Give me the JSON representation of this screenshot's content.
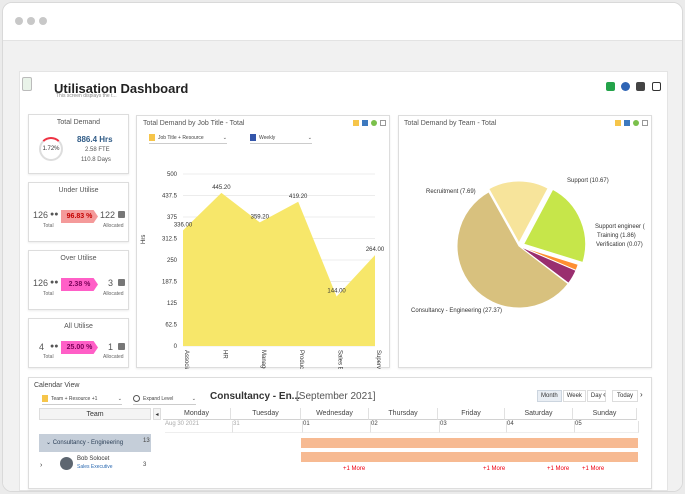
{
  "window": {
    "dots": 3
  },
  "app": {
    "title": "Utilisation Dashboard",
    "subtitle": "This screen displays the t...",
    "colors": {
      "accent": "#f7e76a",
      "pink": "#ff5fc7",
      "salmon": "#f08a8a",
      "green": "#c6e64a",
      "brown": "#d8c17e",
      "blue": "#7c9ccf"
    }
  },
  "kpis": {
    "total": {
      "title": "Total Demand",
      "ring": "1.72%",
      "hours": "886.4 Hrs",
      "fte": "2.58 FTE",
      "days": "110.8 Days"
    },
    "under": {
      "title": "Under Utilise",
      "left": "126",
      "left_label": "Total",
      "value": "96.83 %",
      "right": "122",
      "right_label": "Allocated"
    },
    "over": {
      "title": "Over Utilise",
      "left": "126",
      "left_label": "Total",
      "value": "2.38 %",
      "right": "3",
      "right_label": "Allocated"
    },
    "all": {
      "title": "All Utilise",
      "left": "4",
      "left_label": "Total",
      "value": "25.00 %",
      "right": "1",
      "right_label": "Allocated"
    }
  },
  "area_chart": {
    "title": "Total Demand by Job Title - Total",
    "dropdown_left": "Job Title + Resource",
    "dropdown_right": "Weekly"
  },
  "pie_chart": {
    "title": "Total Demand by Team - Total"
  },
  "calendar": {
    "title": "Calendar View",
    "team_filter": "Team + Resource +1",
    "expand": "Expand Level",
    "period_name": "Consultancy - En...",
    "period_month": "[September 2021]",
    "views": [
      "Month",
      "Week",
      "Day"
    ],
    "today": "Today",
    "days": [
      "Monday",
      "Tuesday",
      "Wednesday",
      "Thursday",
      "Friday",
      "Saturday",
      "Sunday"
    ],
    "dates": [
      "Aug 30 2021",
      "31",
      "01",
      "02",
      "03",
      "04",
      "05"
    ],
    "team_header": "Team",
    "group_name": "Consultancy - Engineering",
    "group_count": "13",
    "person_name": "Bob Solocet",
    "person_role": "Sales Executive",
    "person_count": "3",
    "more": "+1 More"
  },
  "chart_data": [
    {
      "type": "area",
      "title": "",
      "categories": [
        "Associate en",
        "HR",
        "Manager",
        "Product Arch",
        "Sales Executi",
        "Supervisor"
      ],
      "values": [
        336.0,
        445.2,
        359.2,
        419.2,
        144.0,
        264.0
      ],
      "xlabel": "",
      "ylabel": "Hrs",
      "ylim": [
        0,
        500
      ],
      "yticks": [
        0,
        62.5,
        125,
        187.5,
        250,
        312.5,
        375,
        437.5,
        500
      ],
      "grid": true
    },
    {
      "type": "pie",
      "title": "",
      "labels": [
        "Support",
        "Support engineer (",
        "Training",
        "Verification",
        "Consultancy - Engineering",
        "Recruitment"
      ],
      "values": [
        10.67,
        0.8,
        1.86,
        0.07,
        27.37,
        7.69
      ],
      "value_labels": [
        "Support (10.67)",
        "Support engineer (",
        "Training (1.86)",
        "Verification (0.07)",
        "Consultancy - Engineering (27.37)",
        "Recruitment (7.69)"
      ]
    }
  ]
}
